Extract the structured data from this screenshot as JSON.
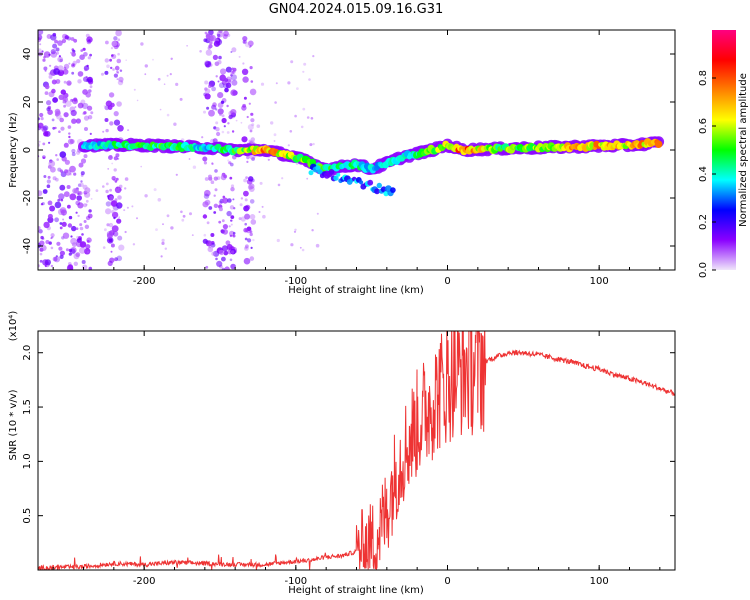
{
  "figure": {
    "title": "GN04.2024.015.09.16.G31"
  },
  "chart_data": [
    {
      "type": "heatmap",
      "xlabel": "Height of straight line (km)",
      "ylabel": "Frequency (Hz)",
      "xlim": [
        -270,
        150
      ],
      "ylim": [
        -50,
        50
      ],
      "x_ticks": [
        -200,
        -100,
        0,
        100
      ],
      "y_ticks": [
        -40,
        -20,
        0,
        20,
        40
      ],
      "grid": false,
      "colorbar": {
        "label": "Normalized spectral amplitude",
        "range": [
          0,
          1
        ],
        "ticks": [
          "0.0",
          "0.2",
          "0.4",
          "0.6",
          "0.8"
        ],
        "colors": [
          "#f0e6fa",
          "#8a00ff",
          "#0000ff",
          "#00ffff",
          "#00ff00",
          "#ffff00",
          "#ff8000",
          "#ff0000",
          "#ff0080"
        ]
      },
      "ridge": [
        {
          "x": -240,
          "f": 2,
          "a": 0.35
        },
        {
          "x": -220,
          "f": 2,
          "a": 0.45
        },
        {
          "x": -200,
          "f": 2,
          "a": 0.5
        },
        {
          "x": -180,
          "f": 1.5,
          "a": 0.5
        },
        {
          "x": -160,
          "f": 1,
          "a": 0.4
        },
        {
          "x": -140,
          "f": 0,
          "a": 0.5
        },
        {
          "x": -120,
          "f": 0,
          "a": 0.8
        },
        {
          "x": -100,
          "f": -3,
          "a": 0.6
        },
        {
          "x": -80,
          "f": -8,
          "a": 0.5
        },
        {
          "x": -60,
          "f": -6,
          "a": 0.45
        },
        {
          "x": -50,
          "f": -8,
          "a": 0.4
        },
        {
          "x": -30,
          "f": -3,
          "a": 0.4
        },
        {
          "x": -10,
          "f": 0,
          "a": 0.55
        },
        {
          "x": 0,
          "f": 2,
          "a": 0.6
        },
        {
          "x": 10,
          "f": 0,
          "a": 0.85
        },
        {
          "x": 30,
          "f": 0.5,
          "a": 0.55
        },
        {
          "x": 60,
          "f": 1,
          "a": 0.6
        },
        {
          "x": 90,
          "f": 1.5,
          "a": 0.75
        },
        {
          "x": 120,
          "f": 2,
          "a": 0.7
        },
        {
          "x": 140,
          "f": 3,
          "a": 0.8
        }
      ],
      "noise_bands": [
        [
          -270,
          -235
        ],
        [
          -225,
          -215
        ],
        [
          -160,
          -140
        ],
        [
          -135,
          -128
        ]
      ]
    },
    {
      "type": "line",
      "xlabel": "Height of straight line (km)",
      "ylabel": "SNR (10 * v/v)",
      "y_multiplier": "(x10⁴)",
      "xlim": [
        -270,
        150
      ],
      "ylim": [
        0,
        2.2
      ],
      "x_ticks": [
        -200,
        -100,
        0,
        100
      ],
      "y_ticks": [
        "0.5",
        "1.0",
        "1.5",
        "2.0"
      ],
      "grid": false,
      "series": [
        {
          "color": "#ee3333",
          "x": [
            -270,
            -240,
            -220,
            -200,
            -180,
            -160,
            -140,
            -120,
            -100,
            -90,
            -80,
            -70,
            -60,
            -50,
            -45,
            -40,
            -35,
            -30,
            -25,
            -20,
            -15,
            -10,
            -5,
            0,
            10,
            20,
            30,
            40,
            50,
            60,
            70,
            80,
            90,
            100,
            110,
            120,
            130,
            140,
            150
          ],
          "values": [
            0.02,
            0.03,
            0.06,
            0.05,
            0.07,
            0.06,
            0.05,
            0.05,
            0.08,
            0.09,
            0.12,
            0.13,
            0.17,
            0.25,
            0.35,
            0.55,
            0.85,
            1.05,
            1.2,
            1.35,
            1.45,
            1.55,
            1.65,
            1.75,
            1.85,
            1.9,
            1.95,
            2.0,
            2.0,
            1.98,
            1.95,
            1.92,
            1.88,
            1.85,
            1.8,
            1.76,
            1.72,
            1.67,
            1.62
          ]
        }
      ]
    }
  ]
}
